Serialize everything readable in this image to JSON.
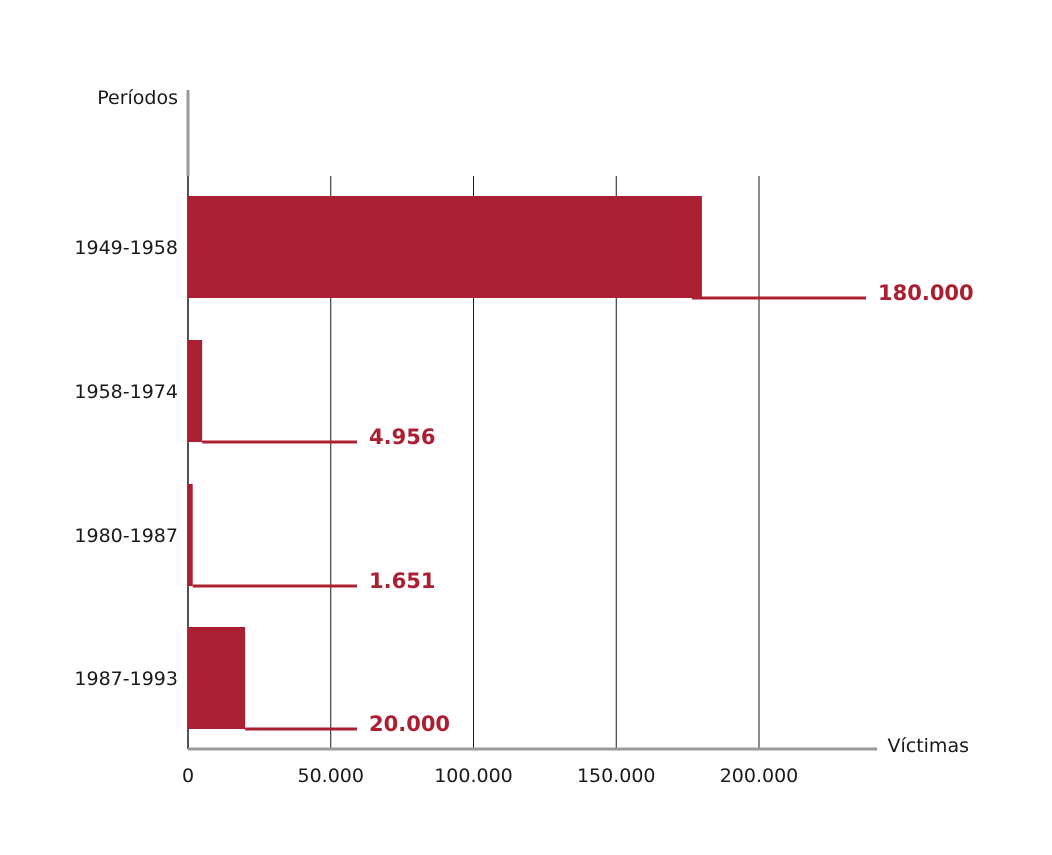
{
  "chart_data": {
    "type": "bar",
    "orientation": "horizontal",
    "ylabel": "Períodos",
    "xlabel": "Víctimas",
    "categories": [
      "1949-1958",
      "1958-1974",
      "1980-1987",
      "1987-1993"
    ],
    "values": [
      180000,
      4956,
      1651,
      20000
    ],
    "value_labels": [
      "180.000",
      "4.956",
      "1.651",
      "20.000"
    ],
    "xlim": [
      0,
      240000
    ],
    "x_ticks": [
      0,
      50000,
      100000,
      150000,
      200000
    ],
    "x_tick_labels": [
      "0",
      "50.000",
      "100.000",
      "150.000",
      "200.000"
    ],
    "vertical_grid": true,
    "colors": {
      "bar": "#ab1f33",
      "value_label": "#ab1f33",
      "grid": "#1a1a1a",
      "axis": "#9a9a9a"
    }
  }
}
